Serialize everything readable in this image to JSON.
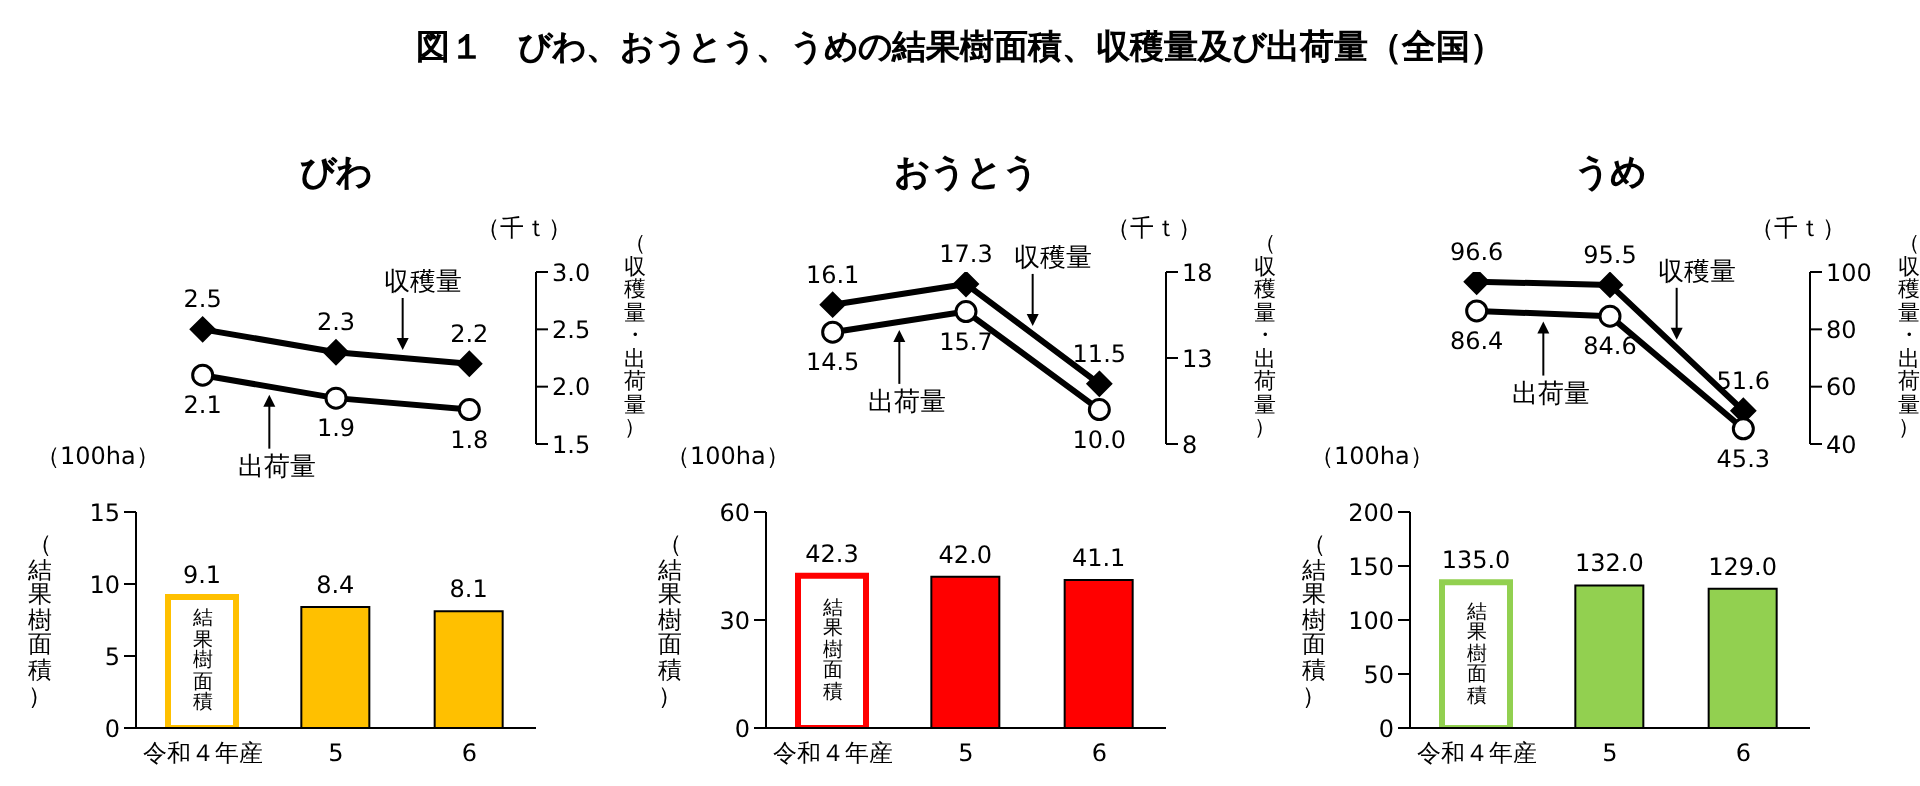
{
  "chart_data": [
    {
      "type": "line",
      "title": "図１　びわ、おうとう、うめの結果樹面積、収穫量及び出荷量（全国）",
      "subtitle": "びわ",
      "ylabel": "（収穫量・出荷量）",
      "annotations": [
        "（千ｔ）"
      ],
      "categories": [
        null,
        null,
        null
      ],
      "tick_labels": "y",
      "ylim": [
        1.5,
        3.0
      ],
      "yticks": [
        1.5,
        {
          "value": 2,
          "label": "2.0"
        },
        2.5,
        {
          "value": 3,
          "label": "3.0"
        }
      ],
      "series": [
        {
          "name": "収穫量",
          "color": "#000000",
          "marker": "diamond",
          "values": [
            2.5,
            2.3,
            2.2
          ],
          "value_labels": [
            "2.5",
            "2.3",
            "2.2"
          ]
        },
        {
          "name": "出荷量",
          "color": "#000000",
          "marker": "circle",
          "values": [
            2.1,
            1.9,
            1.8
          ],
          "value_labels": [
            "2.1",
            "1.9",
            "1.8"
          ]
        }
      ]
    },
    {
      "type": "bar",
      "ylabel": "（結果樹面積）",
      "annotations": [
        "（100ha）",
        "結果樹面積"
      ],
      "categories": [
        "令和４年産",
        "5",
        "6"
      ],
      "ylim": [
        0,
        15
      ],
      "yticks": [
        0,
        5,
        10,
        15
      ],
      "series": [
        {
          "color": "#ffc000",
          "colors": [
            "#ffffff",
            "#ffc000",
            "#ffc000"
          ],
          "values": [
            9.1,
            8.4,
            8.1
          ],
          "value_labels": [
            "9.1",
            "8.4",
            "8.1"
          ]
        }
      ]
    },
    {
      "type": "line",
      "subtitle": "おうとう",
      "ylabel": "（収穫量・出荷量）",
      "annotations": [
        "（千ｔ）"
      ],
      "categories": [
        null,
        null,
        null
      ],
      "tick_labels": "y",
      "ylim": [
        8,
        18
      ],
      "yticks": [
        8,
        13,
        18
      ],
      "series": [
        {
          "name": "収穫量",
          "color": "#000000",
          "marker": "diamond",
          "values": [
            16.1,
            17.3,
            11.5
          ],
          "value_labels": [
            "16.1",
            "17.3",
            "11.5"
          ]
        },
        {
          "name": "出荷量",
          "color": "#000000",
          "marker": "circle",
          "values": [
            14.5,
            15.7,
            10.0
          ],
          "value_labels": [
            "14.5",
            "15.7",
            "10.0"
          ]
        }
      ]
    },
    {
      "type": "bar",
      "ylabel": "（結果樹面積）",
      "annotations": [
        "（100ha）",
        "結果樹面積"
      ],
      "categories": [
        "令和４年産",
        "5",
        "6"
      ],
      "ylim": [
        0,
        60
      ],
      "yticks": [
        0,
        30,
        60
      ],
      "series": [
        {
          "color": "#ff0000",
          "colors": [
            "#ffffff",
            "#ff0000",
            "#ff0000"
          ],
          "values": [
            42.3,
            42.0,
            41.1
          ],
          "value_labels": [
            "42.3",
            "42.0",
            "41.1"
          ]
        }
      ]
    },
    {
      "type": "line",
      "subtitle": "うめ",
      "ylabel": "（収穫量・出荷量）",
      "annotations": [
        "（千ｔ）"
      ],
      "categories": [
        null,
        null,
        null
      ],
      "tick_labels": "y",
      "ylim": [
        40,
        100
      ],
      "yticks": [
        40,
        60,
        80,
        100
      ],
      "series": [
        {
          "name": "収穫量",
          "color": "#000000",
          "marker": "diamond",
          "values": [
            96.6,
            95.5,
            51.6
          ],
          "value_labels": [
            "96.6",
            "95.5",
            "51.6"
          ]
        },
        {
          "name": "出荷量",
          "color": "#000000",
          "marker": "circle",
          "values": [
            86.4,
            84.6,
            45.3
          ],
          "value_labels": [
            "86.4",
            "84.6",
            "45.3"
          ]
        }
      ]
    },
    {
      "type": "bar",
      "ylabel": "（結果樹面積）",
      "annotations": [
        "（100ha）",
        "結果樹面積"
      ],
      "categories": [
        "令和４年産",
        "5",
        "6"
      ],
      "ylim": [
        0,
        200
      ],
      "yticks": [
        0,
        50,
        100,
        150,
        200
      ],
      "series": [
        {
          "color": "#92d050",
          "colors": [
            "#ffffff",
            "#92d050",
            "#92d050"
          ],
          "values": [
            135.0,
            132.0,
            129.0
          ],
          "value_labels": [
            "135.0",
            "132.0",
            "129.0"
          ]
        }
      ]
    }
  ]
}
